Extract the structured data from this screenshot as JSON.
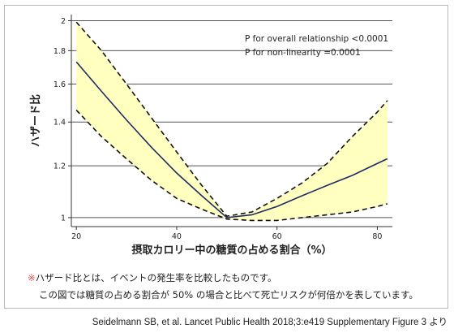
{
  "chart_data": {
    "type": "line",
    "title": "",
    "xlabel": "摂取カロリー中の糖質の占める割合（%）",
    "ylabel": "ハザード比",
    "xlim": [
      19,
      83
    ],
    "ylim": [
      0.98,
      2.02
    ],
    "log_y": true,
    "xticks": [
      20,
      40,
      60,
      80
    ],
    "yticks": [
      1,
      1.2,
      1.4,
      1.6,
      1.8,
      2
    ],
    "grid": "horizontal",
    "annotations": [
      "P for overall relationship <0.0001",
      "P for non-linearity =0.0001"
    ],
    "series": [
      {
        "role": "estimate",
        "x": [
          20,
          25,
          30,
          35,
          40,
          45,
          50,
          55,
          60,
          65,
          70,
          75,
          80,
          82
        ],
        "y": [
          1.73,
          1.56,
          1.41,
          1.28,
          1.17,
          1.08,
          1.0,
          1.01,
          1.04,
          1.08,
          1.12,
          1.16,
          1.21,
          1.23
        ]
      },
      {
        "role": "upper",
        "x": [
          20,
          25,
          30,
          35,
          40,
          45,
          50,
          55,
          60,
          65,
          70,
          75,
          80,
          82
        ],
        "y": [
          1.99,
          1.8,
          1.6,
          1.42,
          1.26,
          1.12,
          1.005,
          1.02,
          1.07,
          1.13,
          1.21,
          1.33,
          1.45,
          1.51
        ]
      },
      {
        "role": "lower",
        "x": [
          20,
          25,
          30,
          35,
          40,
          45,
          50,
          55,
          60,
          65,
          70,
          75,
          80,
          82
        ],
        "y": [
          1.46,
          1.33,
          1.23,
          1.14,
          1.07,
          1.03,
          0.995,
          0.99,
          0.99,
          1.0,
          1.01,
          1.02,
          1.04,
          1.05
        ]
      }
    ],
    "colors": {
      "band": "#ffffc0",
      "line": "#1f2b66",
      "bound": "#111111",
      "grid": "#555555"
    }
  },
  "notes": {
    "mark": "※",
    "line1": "ハザード比とは、イベントの発生率を比較したものです。",
    "line2": "この図では糖質の占める割合が 50% の場合と比べて死亡リスクが何倍かを表しています。"
  },
  "source": "Seidelmann SB, et al. Lancet Public Health 2018;3:e419 Supplementary Figure 3 より"
}
